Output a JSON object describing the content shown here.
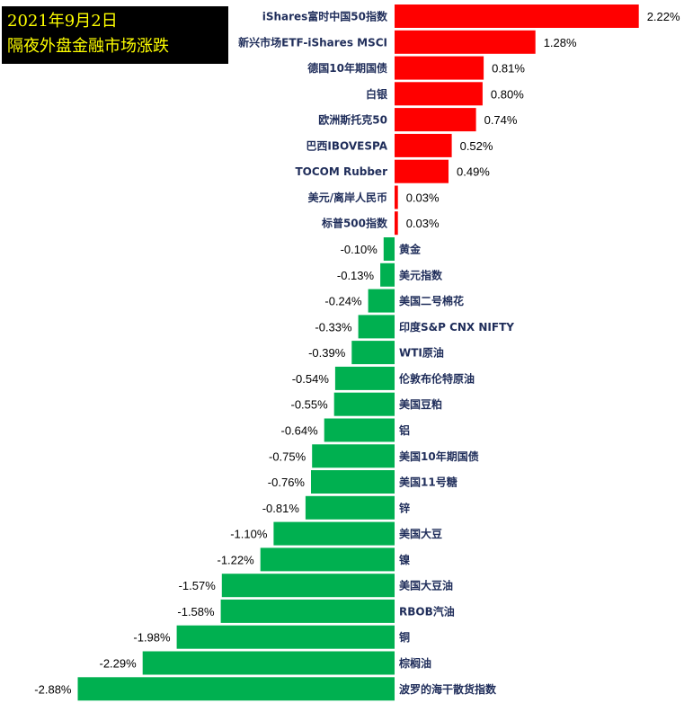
{
  "title_box": {
    "line1": "2021年9月2日",
    "line2": "隔夜外盘金融市场涨跌"
  },
  "colors": {
    "positive": "#ff0000",
    "negative": "#00b050",
    "label": "#1f2d5a",
    "title_bg": "#000000",
    "title_text": "#ffff00"
  },
  "chart_data": {
    "type": "bar",
    "orientation": "horizontal",
    "title": "",
    "xlabel": "",
    "ylabel": "",
    "unit": "%",
    "categories": [
      "iShares富时中国50指数",
      "新兴市场ETF-iShares MSCI",
      "德国10年期国债",
      "白银",
      "欧洲斯托克50",
      "巴西IBOVESPA",
      "TOCOM Rubber",
      "美元/离岸人民币",
      "标普500指数",
      "黄金",
      "美元指数",
      "美国二号棉花",
      "印度S&P CNX NIFTY",
      "WTI原油",
      "伦敦布伦特原油",
      "美国豆粕",
      "铝",
      "美国10年期国债",
      "美国11号糖",
      "锌",
      "美国大豆",
      "镍",
      "美国大豆油",
      "RBOB汽油",
      "铜",
      "棕榈油",
      "波罗的海干散货指数"
    ],
    "values": [
      2.22,
      1.28,
      0.81,
      0.8,
      0.74,
      0.52,
      0.49,
      0.03,
      0.03,
      -0.1,
      -0.13,
      -0.24,
      -0.33,
      -0.39,
      -0.54,
      -0.55,
      -0.64,
      -0.75,
      -0.76,
      -0.81,
      -1.1,
      -1.22,
      -1.57,
      -1.58,
      -1.98,
      -2.29,
      -2.88
    ],
    "value_labels": [
      "2.22%",
      "1.28%",
      "0.81%",
      "0.80%",
      "0.74%",
      "0.52%",
      "0.49%",
      "0.03%",
      "0.03%",
      "-0.10%",
      "-0.13%",
      "-0.24%",
      "-0.33%",
      "-0.39%",
      "-0.54%",
      "-0.55%",
      "-0.64%",
      "-0.75%",
      "-0.76%",
      "-0.81%",
      "-1.10%",
      "-1.22%",
      "-1.57%",
      "-1.58%",
      "-1.98%",
      "-2.29%",
      "-2.88%"
    ],
    "grid": false,
    "legend": "none"
  }
}
